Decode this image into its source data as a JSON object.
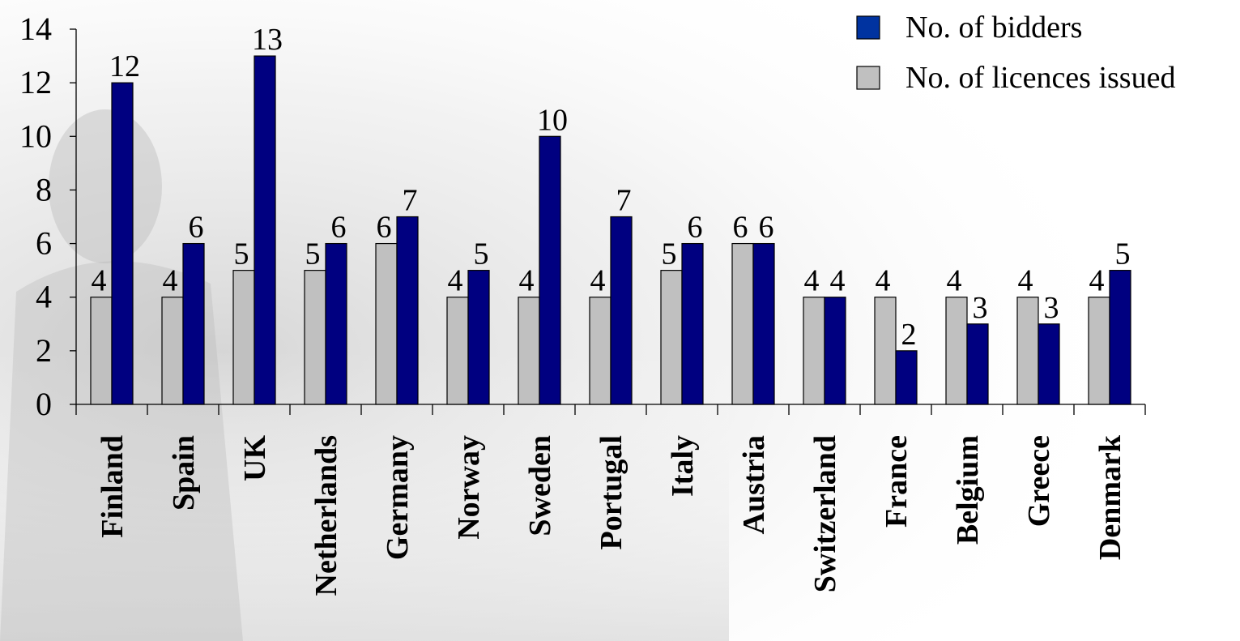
{
  "chart_data": {
    "type": "bar",
    "categories": [
      "Finland",
      "Spain",
      "UK",
      "Netherlands",
      "Germany",
      "Norway",
      "Sweden",
      "Portugal",
      "Italy",
      "Austria",
      "Switzerland",
      "France",
      "Belgium",
      "Greece",
      "Denmark"
    ],
    "series": [
      {
        "name": "No. of licences issued",
        "color": "#c0c0c0",
        "values": [
          4,
          4,
          5,
          5,
          6,
          4,
          4,
          4,
          5,
          6,
          4,
          4,
          4,
          4,
          4
        ]
      },
      {
        "name": "No. of bidders",
        "color": "#000080",
        "values": [
          12,
          6,
          13,
          6,
          7,
          5,
          10,
          7,
          6,
          6,
          4,
          2,
          3,
          3,
          5
        ]
      }
    ],
    "ylim": [
      0,
      14
    ],
    "yticks": [
      0,
      2,
      4,
      6,
      8,
      10,
      12,
      14
    ],
    "legend": {
      "position": "top-right",
      "items": [
        {
          "label": "No. of bidders",
          "color": "#0033a0"
        },
        {
          "label": "No. of licences issued",
          "color": "#c0c0c0"
        }
      ]
    },
    "data_labels": true,
    "grid": false
  }
}
